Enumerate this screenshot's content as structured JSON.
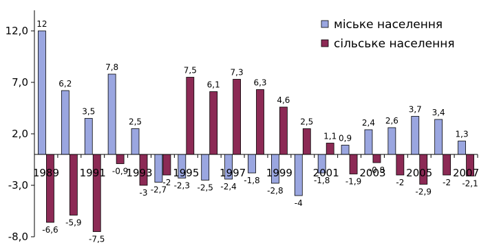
{
  "chart_data": {
    "type": "bar",
    "title": "",
    "xlabel": "",
    "ylabel": "",
    "ylim": [
      -8.0,
      14.0
    ],
    "y_ticks": [
      12.0,
      7.0,
      2.0,
      -3.0,
      -8.0
    ],
    "y_tick_labels": [
      "12,0",
      "7,0",
      "2,0",
      "-3,0",
      "-8,0"
    ],
    "categories": [
      "1989",
      "1990",
      "1991",
      "1992",
      "1993",
      "1994",
      "1995",
      "1996",
      "1997",
      "1998",
      "1999",
      "2000",
      "2001",
      "2002",
      "2003",
      "2004",
      "2005",
      "2006",
      "2007"
    ],
    "x_tick_labels": [
      "1989",
      "1991",
      "1993",
      "1995",
      "1997",
      "1999",
      "2001",
      "2003",
      "2005",
      "2007"
    ],
    "legend_position": "top-right",
    "series": [
      {
        "name": "міське населення",
        "color": "#9aa6e0",
        "values": [
          12,
          6.2,
          3.5,
          7.8,
          2.5,
          -2.7,
          -2.3,
          -2.5,
          -2.4,
          -1.8,
          -2.8,
          -4,
          -1.8,
          0.9,
          2.4,
          2.6,
          3.7,
          3.4,
          1.3
        ],
        "labels": [
          "12",
          "6,2",
          "3,5",
          "7,8",
          "2,5",
          "-2,7",
          "-2,3",
          "-2,5",
          "-2,4",
          "-1,8",
          "-2,8",
          "-4",
          "-1,8",
          "0,9",
          "2,4",
          "2,6",
          "3,7",
          "3,4",
          "1,3"
        ]
      },
      {
        "name": "сільське населення",
        "color": "#8c2a55",
        "values": [
          -6.6,
          -5.9,
          -7.5,
          -0.9,
          -3,
          -2,
          7.5,
          6.1,
          7.3,
          6.3,
          4.6,
          2.5,
          1.1,
          -1.9,
          -0.8,
          -2,
          -2.9,
          -2,
          -2.1
        ],
        "labels": [
          "-6,6",
          "-5,9",
          "-7,5",
          "-0,9",
          "-3",
          "-2",
          "7,5",
          "6,1",
          "7,3",
          "6,3",
          "4,6",
          "2,5",
          "1,1",
          "-1,9",
          "-0,8",
          "-2",
          "-2,9",
          "-2",
          "-2,1"
        ]
      }
    ]
  }
}
